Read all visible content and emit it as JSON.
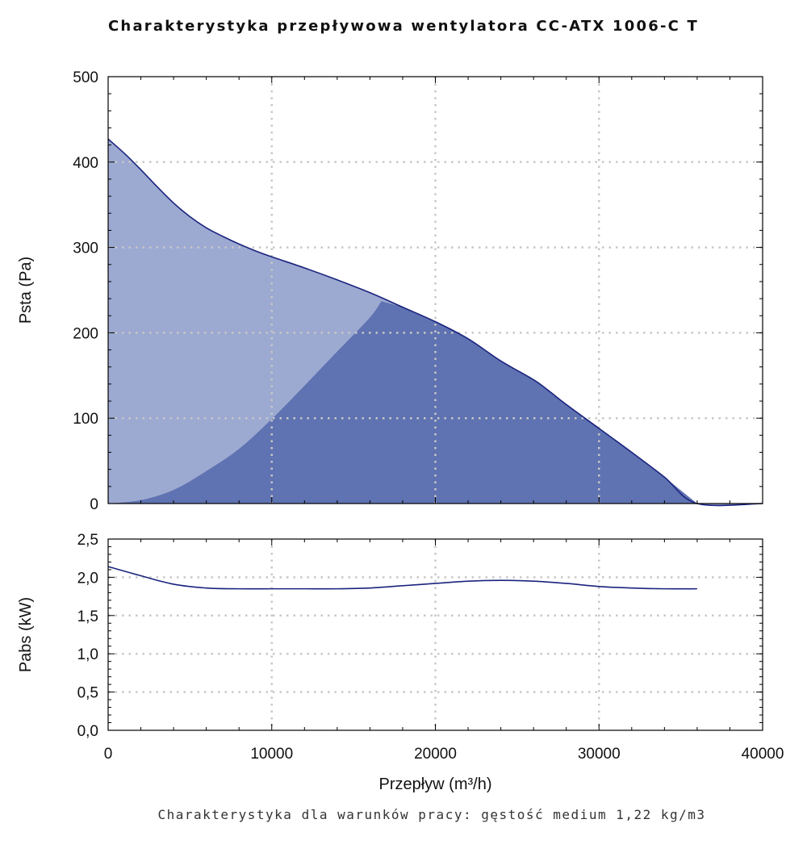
{
  "chart_data": [
    {
      "type": "area",
      "title": "Charakterystyka przepływowa wentylatora CC-ATX 1006-C T",
      "xlabel": "",
      "ylabel": "Psta (Pa)",
      "xlim": [
        0,
        40000
      ],
      "ylim": [
        0,
        500
      ],
      "grid": true,
      "x_tick_labels": [],
      "y_tick_labels": [
        "0",
        "100",
        "200",
        "300",
        "400",
        "500"
      ],
      "series": [
        {
          "x": [
            0,
            1000,
            2000,
            3000,
            4000,
            5000,
            6000,
            7000,
            8000,
            9000,
            10000,
            12000,
            14000,
            16000,
            18000,
            20000,
            22000,
            24000,
            26000,
            27000,
            28000,
            30000,
            32000,
            34000,
            36000,
            40000
          ],
          "y": [
            427,
            410,
            391,
            371,
            352,
            336,
            323,
            313,
            304,
            296,
            289,
            276,
            262,
            247,
            230,
            213,
            193,
            167,
            145,
            131,
            116,
            88,
            60,
            31,
            0,
            0
          ],
          "color": "#1a237e"
        }
      ],
      "region_boundary": {
        "x": [
          0,
          2000,
          4000,
          6000,
          8000,
          10000,
          12000,
          14000,
          16000,
          16700
        ],
        "y": [
          0,
          4,
          16,
          38,
          64,
          99,
          138,
          178,
          218,
          237
        ]
      },
      "fill_light": "#9ca9d1",
      "fill_dark": "#5f72b1"
    },
    {
      "type": "line",
      "title": "",
      "xlabel": "Przepływ (m³/h)",
      "ylabel": "Pabs (kW)",
      "xlim": [
        0,
        40000
      ],
      "ylim": [
        0,
        2.5
      ],
      "grid": true,
      "x_tick_labels": [
        "0",
        "10000",
        "20000",
        "30000",
        "40000"
      ],
      "y_tick_labels": [
        "0,0",
        "0,5",
        "1,0",
        "1,5",
        "2,0",
        "2,5"
      ],
      "series": [
        {
          "x": [
            0,
            2000,
            4000,
            6000,
            8000,
            10000,
            12000,
            14000,
            16000,
            18000,
            20000,
            22000,
            24000,
            26000,
            28000,
            30000,
            32000,
            34000,
            36000
          ],
          "y": [
            2.14,
            2.02,
            1.91,
            1.86,
            1.85,
            1.85,
            1.85,
            1.85,
            1.86,
            1.89,
            1.92,
            1.95,
            1.96,
            1.95,
            1.92,
            1.88,
            1.86,
            1.85,
            1.85
          ],
          "color": "#1a237e"
        }
      ]
    }
  ],
  "footer": "Charakterystyka dla warunków pracy: gęstość medium 1,22 kg/m3"
}
